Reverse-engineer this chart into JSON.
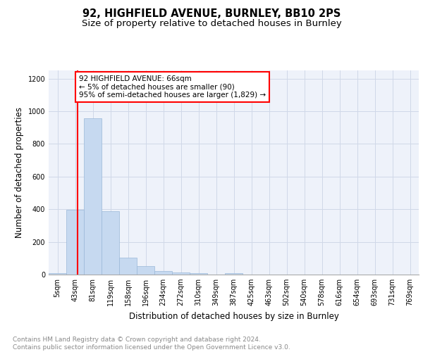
{
  "title1": "92, HIGHFIELD AVENUE, BURNLEY, BB10 2PS",
  "title2": "Size of property relative to detached houses in Burnley",
  "xlabel": "Distribution of detached houses by size in Burnley",
  "ylabel": "Number of detached properties",
  "bin_labels": [
    "5sqm",
    "43sqm",
    "81sqm",
    "119sqm",
    "158sqm",
    "196sqm",
    "234sqm",
    "272sqm",
    "310sqm",
    "349sqm",
    "387sqm",
    "425sqm",
    "463sqm",
    "502sqm",
    "540sqm",
    "578sqm",
    "616sqm",
    "654sqm",
    "693sqm",
    "731sqm",
    "769sqm"
  ],
  "bar_values": [
    10,
    395,
    955,
    390,
    105,
    52,
    22,
    12,
    10,
    0,
    10,
    0,
    0,
    0,
    0,
    0,
    0,
    0,
    0,
    0,
    0
  ],
  "bar_color": "#c6d9f0",
  "bar_edge_color": "#9ab8d8",
  "grid_color": "#d0d8e8",
  "background_color": "#eef2fa",
  "red_line_x": 1.62,
  "annotation_text": "92 HIGHFIELD AVENUE: 66sqm\n← 5% of detached houses are smaller (90)\n95% of semi-detached houses are larger (1,829) →",
  "annotation_box_color": "white",
  "annotation_edge_color": "red",
  "ylim": [
    0,
    1250
  ],
  "yticks": [
    0,
    200,
    400,
    600,
    800,
    1000,
    1200
  ],
  "footer_text": "Contains HM Land Registry data © Crown copyright and database right 2024.\nContains public sector information licensed under the Open Government Licence v3.0.",
  "title1_fontsize": 10.5,
  "title2_fontsize": 9.5,
  "xlabel_fontsize": 8.5,
  "ylabel_fontsize": 8.5,
  "tick_fontsize": 7,
  "footer_fontsize": 6.5,
  "annot_fontsize": 7.5
}
